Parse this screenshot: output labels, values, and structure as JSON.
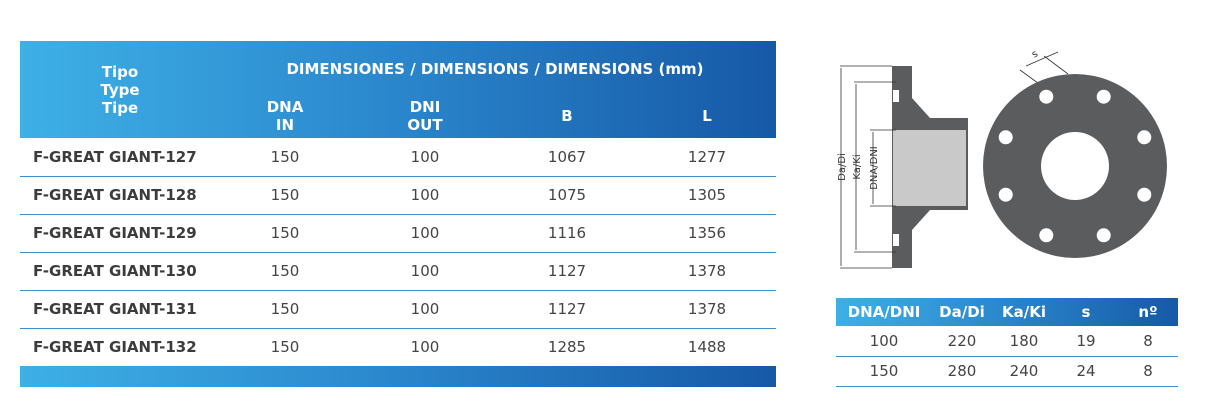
{
  "main_table": {
    "tipo_header": [
      "Tipo",
      "Type",
      "Tipe"
    ],
    "group_header": "DIMENSIONES / DIMENSIONS / DIMENSIONS (mm)",
    "columns": [
      [
        "DNA",
        "IN"
      ],
      [
        "DNI",
        "OUT"
      ],
      [
        "B"
      ],
      [
        "L"
      ]
    ],
    "rows": [
      [
        "F-GREAT GIANT-127",
        150,
        100,
        1067,
        1277
      ],
      [
        "F-GREAT GIANT-128",
        150,
        100,
        1075,
        1305
      ],
      [
        "F-GREAT GIANT-129",
        150,
        100,
        1116,
        1356
      ],
      [
        "F-GREAT GIANT-130",
        150,
        100,
        1127,
        1378
      ],
      [
        "F-GREAT GIANT-131",
        150,
        100,
        1127,
        1378
      ],
      [
        "F-GREAT GIANT-132",
        150,
        100,
        1285,
        1488
      ]
    ]
  },
  "diagram": {
    "s_label": "s",
    "da_label": "Da/Di",
    "ka_label": "Ka/Ki",
    "dna_label": "DNA/DNI"
  },
  "flange_table": {
    "columns": [
      "DNA/DNI",
      "Da/Di",
      "Ka/Ki",
      "s",
      "nº"
    ],
    "rows": [
      [
        100,
        220,
        180,
        19,
        8
      ],
      [
        150,
        280,
        240,
        24,
        8
      ]
    ]
  }
}
